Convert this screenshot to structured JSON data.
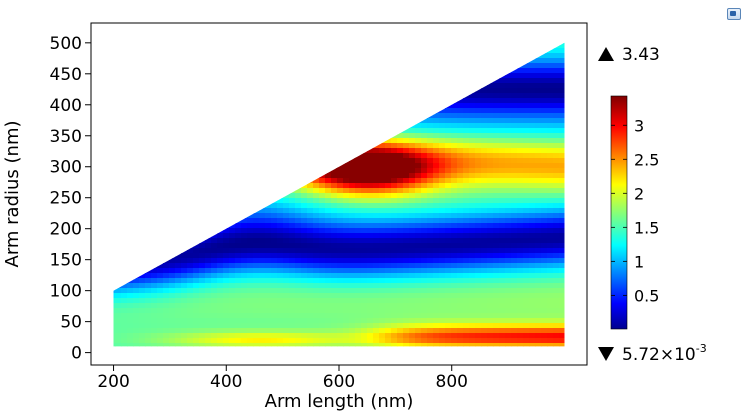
{
  "chart_data": {
    "type": "heatmap",
    "title": "",
    "xlabel": "Arm length (nm)",
    "ylabel": "Arm radius (nm)",
    "xlim": [
      160,
      1040
    ],
    "ylim": [
      -20,
      532
    ],
    "xticks": [
      200,
      400,
      600,
      800
    ],
    "yticks": [
      0,
      50,
      100,
      150,
      200,
      250,
      300,
      350,
      400,
      450,
      500
    ],
    "domain": {
      "x_range": [
        200,
        1000
      ],
      "y_min": 10,
      "y_upper_edge": [
        [
          200,
          100
        ],
        [
          1000,
          500
        ]
      ]
    },
    "field_features": [
      {
        "kind": "maximum",
        "x": 640,
        "y": 295,
        "value": 3.43
      },
      {
        "kind": "low_band",
        "x_range": [
          200,
          1000
        ],
        "y_center_at_x200": 140,
        "y_center_at_x1000": 190,
        "value": 0.1
      },
      {
        "kind": "low_band",
        "x_range": [
          700,
          1000
        ],
        "y": 420,
        "value": 0.2
      },
      {
        "kind": "high_band",
        "x_range": [
          480,
          1000
        ],
        "y": 300,
        "value": 2.5
      },
      {
        "kind": "mid_plateau",
        "x_range": [
          200,
          1000
        ],
        "y_range": [
          50,
          120
        ],
        "value": 1.8
      },
      {
        "kind": "high_strip",
        "x_range": [
          700,
          1000
        ],
        "y": 25,
        "value": 2.9
      }
    ],
    "colorbar": {
      "min": 0.00572,
      "max": 3.43,
      "ticks": [
        "0.5",
        "1",
        "1.5",
        "2",
        "2.5",
        "3"
      ],
      "tick_values": [
        0.5,
        1.0,
        1.5,
        2.0,
        2.5,
        3.0
      ],
      "colormap": "jet"
    },
    "max_label": "3.43",
    "min_label": "5.72×10",
    "min_label_exponent": "-3",
    "grid": false
  }
}
